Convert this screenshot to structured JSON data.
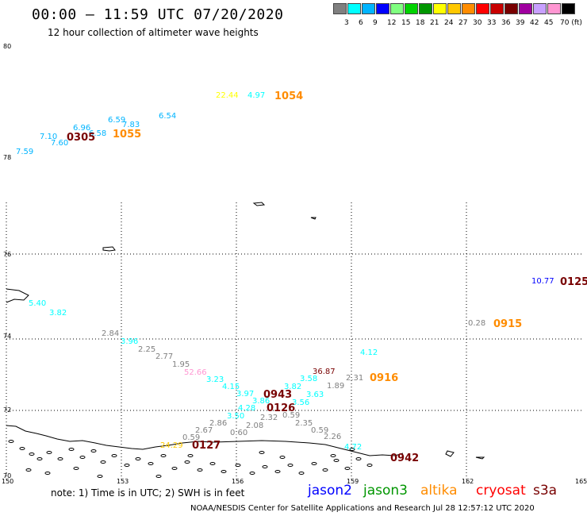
{
  "header": {
    "title": "00:00 — 11:59 UTC 07/20/2020",
    "subtitle": "12 hour collection of altimeter wave heights"
  },
  "scale": {
    "colors": [
      "#808080",
      "#00ffff",
      "#00b4ff",
      "#0000ff",
      "#80ff80",
      "#00d200",
      "#009600",
      "#ffff00",
      "#ffc800",
      "#ff8c00",
      "#ff0000",
      "#c80000",
      "#780000",
      "#a000a0",
      "#c8a0ff",
      "#ff96d2",
      "#000000"
    ],
    "labels": [
      "3",
      "6",
      "9",
      "12",
      "15",
      "18",
      "21",
      "24",
      "27",
      "30",
      "33",
      "36",
      "39",
      "42",
      "45",
      "70 (ft)"
    ]
  },
  "axes": {
    "lon": [
      "150",
      "153",
      "156",
      "159",
      "162",
      "165"
    ],
    "lat": [
      "80",
      "78",
      "76",
      "74",
      "72",
      "70"
    ]
  },
  "wave_heights": [
    {
      "v": "22.44",
      "c": "#ffff00"
    },
    {
      "v": "4.97",
      "c": "#00ffff"
    },
    {
      "v": "6.54",
      "c": "#00b4ff"
    },
    {
      "v": "6.59",
      "c": "#00b4ff"
    },
    {
      "v": "7.83",
      "c": "#00b4ff"
    },
    {
      "v": "6.96",
      "c": "#00b4ff"
    },
    {
      "v": "6.58",
      "c": "#00b4ff"
    },
    {
      "v": "7.10",
      "c": "#00b4ff"
    },
    {
      "v": "7.60",
      "c": "#00b4ff"
    },
    {
      "v": "7.59",
      "c": "#00b4ff"
    },
    {
      "v": "10.77",
      "c": "#0000ff"
    },
    {
      "v": "5.40",
      "c": "#00ffff"
    },
    {
      "v": "3.82",
      "c": "#00ffff"
    },
    {
      "v": "2.84",
      "c": "#808080"
    },
    {
      "v": "3.96",
      "c": "#00ffff"
    },
    {
      "v": "2.25",
      "c": "#808080"
    },
    {
      "v": "2.77",
      "c": "#808080"
    },
    {
      "v": "1.95",
      "c": "#808080"
    },
    {
      "v": "52.66",
      "c": "#ff96d2"
    },
    {
      "v": "3.23",
      "c": "#00ffff"
    },
    {
      "v": "4.15",
      "c": "#00ffff"
    },
    {
      "v": "3.97",
      "c": "#00ffff"
    },
    {
      "v": "3.86",
      "c": "#00ffff"
    },
    {
      "v": "4.28",
      "c": "#00ffff"
    },
    {
      "v": "3.50",
      "c": "#00ffff"
    },
    {
      "v": "2.86",
      "c": "#808080"
    },
    {
      "v": "2.67",
      "c": "#808080"
    },
    {
      "v": "0.59",
      "c": "#808080"
    },
    {
      "v": "0.60",
      "c": "#808080"
    },
    {
      "v": "2.08",
      "c": "#808080"
    },
    {
      "v": "2.32",
      "c": "#808080"
    },
    {
      "v": "0.59",
      "c": "#808080"
    },
    {
      "v": "2.35",
      "c": "#808080"
    },
    {
      "v": "0.59",
      "c": "#808080"
    },
    {
      "v": "2.26",
      "c": "#808080"
    },
    {
      "v": "4.72",
      "c": "#00ffff"
    },
    {
      "v": "3.58",
      "c": "#00ffff"
    },
    {
      "v": "3.82",
      "c": "#00ffff"
    },
    {
      "v": "3.63",
      "c": "#00ffff"
    },
    {
      "v": "3.56",
      "c": "#00ffff"
    },
    {
      "v": "1.89",
      "c": "#808080"
    },
    {
      "v": "2.31",
      "c": "#808080"
    },
    {
      "v": "36.87",
      "c": "#780000"
    },
    {
      "v": "4.12",
      "c": "#00ffff"
    },
    {
      "v": "0.28",
      "c": "#808080"
    },
    {
      "v": "24.29",
      "c": "#ffc800"
    }
  ],
  "pass_times": [
    {
      "t": "1054",
      "c": "#ff8c00"
    },
    {
      "t": "1055",
      "c": "#ff8c00"
    },
    {
      "t": "0305",
      "c": "#780000"
    },
    {
      "t": "0125",
      "c": "#780000"
    },
    {
      "t": "0915",
      "c": "#ff8c00"
    },
    {
      "t": "0916",
      "c": "#ff8c00"
    },
    {
      "t": "0943",
      "c": "#780000"
    },
    {
      "t": "0126",
      "c": "#780000"
    },
    {
      "t": "0127",
      "c": "#780000"
    },
    {
      "t": "0942",
      "c": "#780000"
    }
  ],
  "footer": {
    "note": "note:  1) Time is in UTC;  2) SWH is in feet",
    "satellites": [
      {
        "name": "jason2",
        "c": "#0000ff"
      },
      {
        "name": "jason3",
        "c": "#009600"
      },
      {
        "name": "altika",
        "c": "#ff8c00"
      },
      {
        "name": "cryosat",
        "c": "#ff0000"
      },
      {
        "name": "s3a",
        "c": "#780000"
      }
    ],
    "credit": "NOAA/NESDIS Center for Satellite Applications and Research    Jul 28 12:57:12 UTC 2020"
  }
}
